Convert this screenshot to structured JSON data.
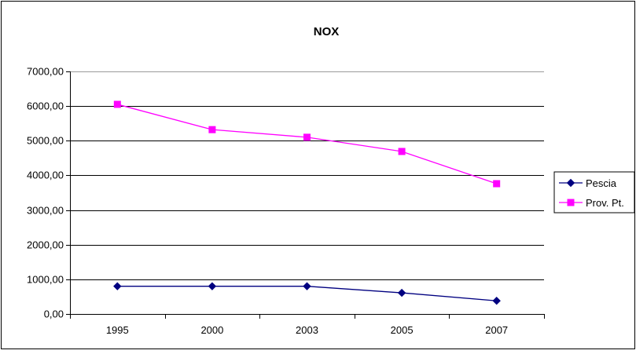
{
  "chart_data": {
    "type": "line",
    "title": "NOX",
    "xlabel": "",
    "ylabel": "",
    "categories": [
      "1995",
      "2000",
      "2003",
      "2005",
      "2007"
    ],
    "ylim": [
      0,
      7000
    ],
    "yticks": [
      "0,00",
      "1000,00",
      "2000,00",
      "3000,00",
      "4000,00",
      "5000,00",
      "6000,00",
      "7000,00"
    ],
    "grid": true,
    "legend_position": "right",
    "series": [
      {
        "name": "Pescia",
        "values": [
          800,
          800,
          800,
          610,
          380
        ],
        "color": "#000080",
        "marker": "diamond"
      },
      {
        "name": "Prov. Pt.",
        "values": [
          6050,
          5320,
          5100,
          4690,
          3760
        ],
        "color": "#ff00ff",
        "marker": "square"
      }
    ]
  }
}
